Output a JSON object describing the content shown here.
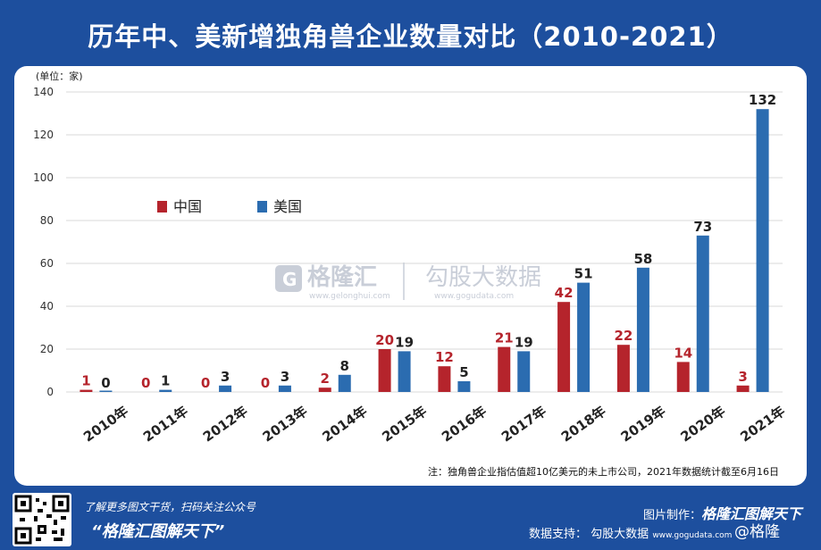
{
  "title": "历年中、美新增独角兽企业数量对比（2010-2021）",
  "chart_data": {
    "type": "bar",
    "unit_label": "(单位：家)",
    "categories": [
      "2010年",
      "2011年",
      "2012年",
      "2013年",
      "2014年",
      "2015年",
      "2016年",
      "2017年",
      "2018年",
      "2019年",
      "2020年",
      "2021年"
    ],
    "series": [
      {
        "name": "中国",
        "color": "#b5242c",
        "values": [
          1,
          0,
          0,
          0,
          2,
          20,
          12,
          21,
          42,
          22,
          14,
          3
        ]
      },
      {
        "name": "美国",
        "color": "#2b6cb0",
        "values": [
          0,
          1,
          3,
          3,
          8,
          19,
          5,
          19,
          51,
          58,
          73,
          132
        ]
      }
    ],
    "ylim": [
      0,
      140
    ],
    "yticks": [
      0,
      20,
      40,
      60,
      80,
      100,
      120,
      140
    ],
    "grid": true,
    "legend_position": "upper-left"
  },
  "watermark": {
    "brand": "格隆汇",
    "brand_url": "www.gelonghui.com",
    "partner": "勾股大数据",
    "partner_url": "www.gogudata.com"
  },
  "note": "注：独角兽企业指估值超10亿美元的未上市公司，2021年数据统计截至6月16日",
  "footer": {
    "promo_line1": "了解更多图文干货，扫码关注公众号",
    "promo_line2": "“格隆汇图解天下”",
    "credit_label": "图片制作：",
    "credit_brand": "格隆汇图解天下",
    "data_label": "数据支持：",
    "data_source": "勾股大数据",
    "data_url": "www.gogudata.com",
    "weibo": "@格隆"
  }
}
